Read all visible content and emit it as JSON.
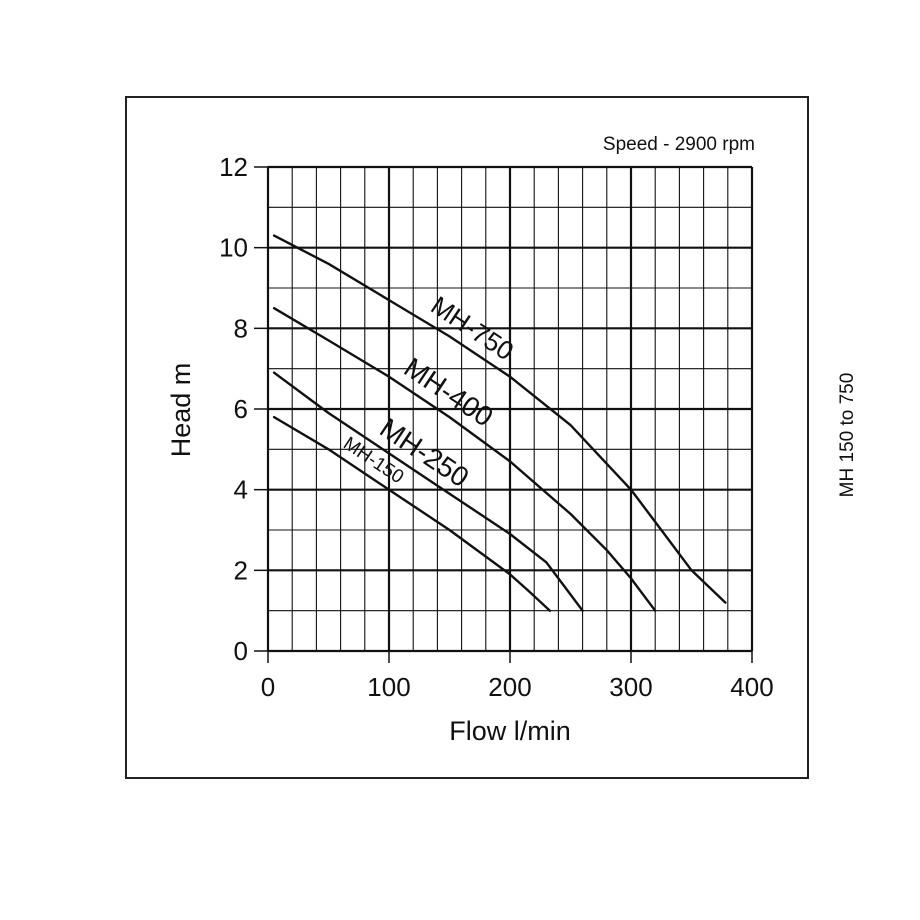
{
  "chart_data": {
    "type": "line",
    "annotation": "Speed - 2900 rpm",
    "side_label": "MH 150 to 750",
    "xlabel": "Flow l/min",
    "ylabel": "Head m",
    "xlim": [
      0,
      400
    ],
    "ylim": [
      0,
      12
    ],
    "x_ticks": [
      "0",
      "100",
      "200",
      "300",
      "400"
    ],
    "y_ticks": [
      "0",
      "2",
      "4",
      "6",
      "8",
      "10",
      "12"
    ],
    "grid": true,
    "series": [
      {
        "name": "MH-750",
        "label": "MH-750",
        "x": [
          5,
          50,
          100,
          150,
          200,
          250,
          300,
          325,
          350,
          378
        ],
        "y": [
          10.3,
          9.6,
          8.7,
          7.8,
          6.8,
          5.6,
          4.0,
          3.0,
          2.0,
          1.2
        ]
      },
      {
        "name": "MH-400",
        "label": "MH-400",
        "x": [
          5,
          50,
          100,
          150,
          200,
          250,
          280,
          300,
          320
        ],
        "y": [
          8.5,
          7.7,
          6.8,
          5.8,
          4.7,
          3.4,
          2.5,
          1.8,
          1.0
        ]
      },
      {
        "name": "MH-250",
        "label": "MH-250",
        "x": [
          5,
          50,
          100,
          150,
          200,
          230,
          245,
          260
        ],
        "y": [
          6.9,
          5.9,
          4.9,
          3.9,
          2.9,
          2.2,
          1.6,
          1.0
        ]
      },
      {
        "name": "MH-150",
        "label": "MH-150",
        "x": [
          5,
          50,
          100,
          150,
          200,
          215,
          233
        ],
        "y": [
          5.8,
          5.0,
          4.0,
          3.0,
          1.9,
          1.5,
          1.0
        ]
      }
    ]
  }
}
